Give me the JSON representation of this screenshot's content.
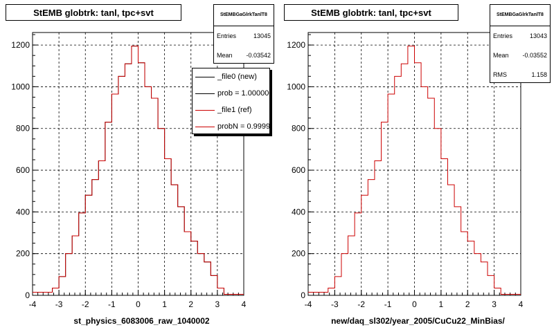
{
  "panels": [
    {
      "title": "StEMB globtrk: tanl, tpc+svt",
      "stats": {
        "name": "StEMBGaGlrkTanlT8",
        "rows": [
          {
            "label": "Entries",
            "value": "13045"
          },
          {
            "label": "Mean",
            "value": "-0.03542"
          }
        ]
      },
      "legend": [
        {
          "label": "_file0 (new)",
          "color": "#000000"
        },
        {
          "label": "prob = 1.000000",
          "color": "#000000"
        },
        {
          "label": "_file1 (ref)",
          "color": "#cc0000"
        },
        {
          "label": "probN = 0.999950",
          "color": "#cc0000"
        }
      ]
    },
    {
      "title": "StEMB globtrk: tanl, tpc+svt",
      "stats": {
        "name": "StEMBGaGlrkTanlT8",
        "rows": [
          {
            "label": "Entries",
            "value": "13043"
          },
          {
            "label": "Mean",
            "value": "-0.03552"
          },
          {
            "label": "RMS",
            "value": "1.158"
          }
        ]
      }
    }
  ],
  "chart_data": [
    {
      "type": "histogram",
      "title": "StEMB globtrk: tanl, tpc+svt",
      "xlabel": "st_physics_6083006_raw_1040002",
      "xlim": [
        -4,
        4
      ],
      "ylim": [
        0,
        1260
      ],
      "xticks": [
        -4,
        -3,
        -2,
        -1,
        0,
        1,
        2,
        3,
        4
      ],
      "yticks": [
        0,
        200,
        400,
        600,
        800,
        1000,
        1200
      ],
      "grid": true,
      "bin_edges": [
        -4.0,
        -3.75,
        -3.5,
        -3.25,
        -3.0,
        -2.75,
        -2.5,
        -2.25,
        -2.0,
        -1.75,
        -1.5,
        -1.25,
        -1.0,
        -0.75,
        -0.5,
        -0.25,
        0.0,
        0.25,
        0.5,
        0.75,
        1.0,
        1.25,
        1.5,
        1.75,
        2.0,
        2.25,
        2.5,
        2.75,
        3.0,
        3.25,
        3.5,
        3.75,
        4.0
      ],
      "series": [
        {
          "name": "_file0 (new)",
          "color": "#000000",
          "values": [
            15,
            15,
            15,
            35,
            90,
            200,
            285,
            395,
            480,
            555,
            645,
            830,
            965,
            1050,
            1110,
            1195,
            1115,
            1000,
            945,
            800,
            655,
            530,
            425,
            305,
            260,
            200,
            160,
            95,
            35,
            5,
            5,
            5
          ]
        },
        {
          "name": "_file1 (ref)",
          "color": "#cc0000",
          "values": [
            15,
            15,
            15,
            35,
            90,
            200,
            285,
            395,
            480,
            555,
            645,
            830,
            965,
            1050,
            1110,
            1195,
            1115,
            1000,
            945,
            800,
            655,
            530,
            425,
            305,
            260,
            200,
            160,
            95,
            35,
            5,
            5,
            5
          ]
        }
      ]
    },
    {
      "type": "histogram",
      "title": "StEMB globtrk: tanl, tpc+svt",
      "xlabel": "new/daq_sl302/year_2005/CuCu22_MinBias/",
      "xlim": [
        -4,
        4
      ],
      "ylim": [
        0,
        1260
      ],
      "xticks": [
        -4,
        -3,
        -2,
        -1,
        0,
        1,
        2,
        3,
        4
      ],
      "yticks": [
        0,
        200,
        400,
        600,
        800,
        1000,
        1200
      ],
      "grid": true,
      "bin_edges": [
        -4.0,
        -3.75,
        -3.5,
        -3.25,
        -3.0,
        -2.75,
        -2.5,
        -2.25,
        -2.0,
        -1.75,
        -1.5,
        -1.25,
        -1.0,
        -0.75,
        -0.5,
        -0.25,
        0.0,
        0.25,
        0.5,
        0.75,
        1.0,
        1.25,
        1.5,
        1.75,
        2.0,
        2.25,
        2.5,
        2.75,
        3.0,
        3.25,
        3.5,
        3.75,
        4.0
      ],
      "series": [
        {
          "name": "",
          "color": "#cc0000",
          "values": [
            15,
            15,
            15,
            35,
            90,
            200,
            285,
            395,
            480,
            555,
            645,
            830,
            965,
            1050,
            1110,
            1195,
            1115,
            1000,
            945,
            800,
            655,
            530,
            425,
            305,
            260,
            200,
            160,
            95,
            35,
            5,
            5,
            5
          ]
        }
      ]
    }
  ]
}
